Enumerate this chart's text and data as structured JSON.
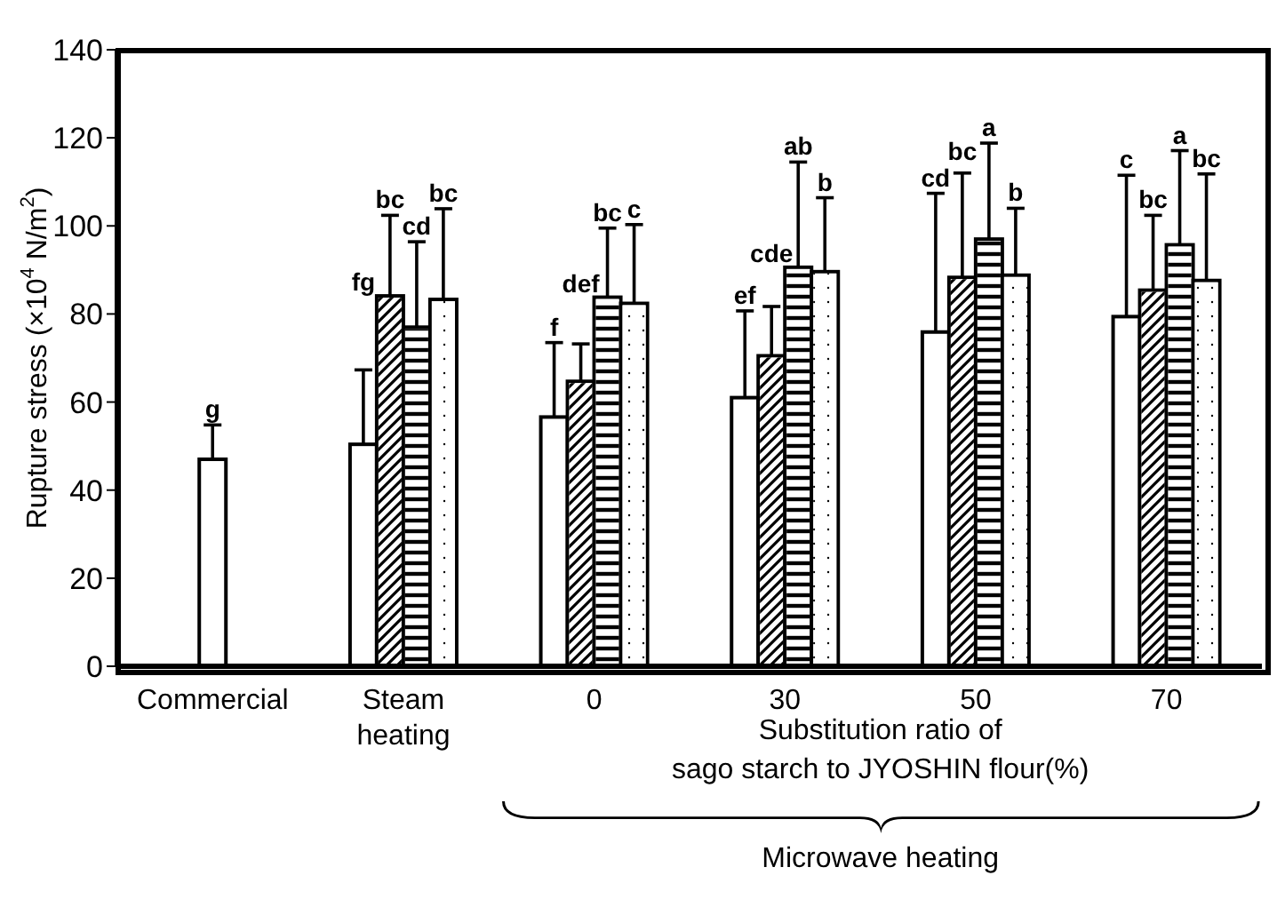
{
  "chart_data": {
    "type": "bar",
    "categories": [
      "Commercial",
      "Steam heating",
      "0",
      "30",
      "50",
      "70"
    ],
    "ylabel": "Rupture stress (×10$^{4}$ N/m$^{2}$)",
    "xlabel": "Substitution ratio of\nsago starch to JYOSHIN flour(%)",
    "annotations": [
      "g",
      "fg",
      "bc",
      "cd",
      "bc",
      "f",
      "def",
      "bc",
      "c",
      "ef",
      "cde",
      "ab",
      "b",
      "cd",
      "bc",
      "a",
      "b",
      "c",
      "bc",
      "a",
      "bc",
      "Microwave heating"
    ],
    "ylim": [
      0,
      140
    ],
    "yticks": [
      0,
      20,
      40,
      60,
      80,
      100,
      120,
      140
    ],
    "grid": false,
    "legend": false,
    "series": [
      {
        "color": "#ffffff",
        "values": [
          47,
          50.4,
          56.6,
          61,
          75.9,
          79.4
        ],
        "errors": [
          [
            47,
            54.8
          ],
          [
            50.4,
            67.3
          ],
          [
            56.6,
            73.5
          ],
          [
            61,
            80.7
          ],
          [
            75.9,
            107.4
          ],
          [
            79.4,
            111.5
          ]
        ]
      },
      {
        "color": "#ffffff",
        "values": [
          null,
          84.1,
          64.7,
          70.5,
          88.3,
          85.4
        ],
        "errors": [
          null,
          [
            84.1,
            102.4
          ],
          [
            64.7,
            73.2
          ],
          [
            70.5,
            81.7
          ],
          [
            88.3,
            112
          ],
          [
            85.4,
            102.4
          ]
        ]
      },
      {
        "color": "#ffffff",
        "values": [
          null,
          77,
          83.8,
          90.6,
          97,
          95.7
        ],
        "errors": [
          null,
          [
            77,
            96.4
          ],
          [
            83.8,
            99.5
          ],
          [
            90.6,
            114.5
          ],
          [
            97,
            118.8
          ],
          [
            95.7,
            117.1
          ]
        ]
      },
      {
        "color": "#ffffff",
        "values": [
          null,
          83.3,
          82.4,
          89.6,
          88.8,
          87.6
        ],
        "errors": [
          null,
          [
            83.3,
            103.9
          ],
          [
            82.4,
            100.3
          ],
          [
            89.6,
            106.4
          ],
          [
            88.8,
            104
          ],
          [
            87.6,
            111.8
          ]
        ]
      }
    ]
  }
}
